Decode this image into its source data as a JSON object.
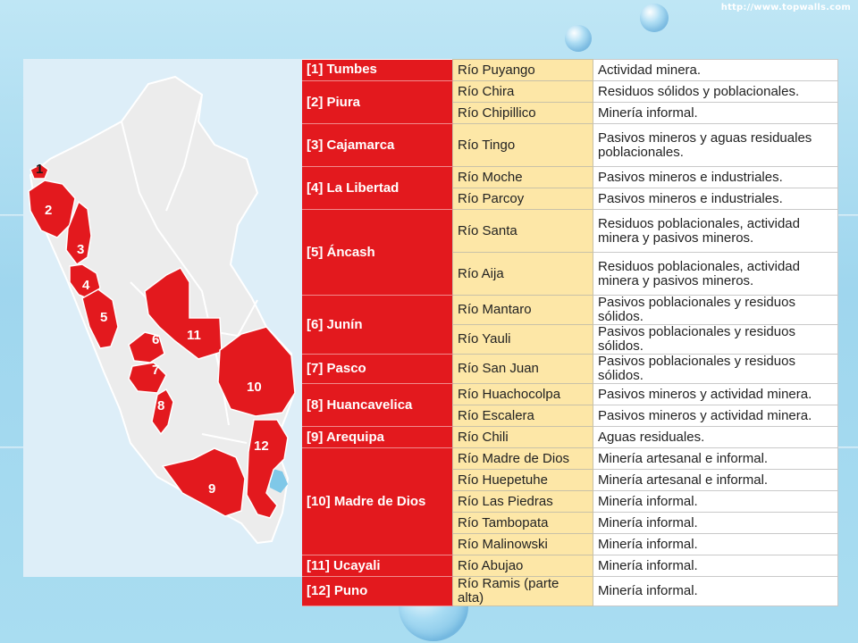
{
  "watermark": "http://www.topwalls.com",
  "map_labels": [
    "1",
    "2",
    "3",
    "4",
    "5",
    "6",
    "7",
    "8",
    "9",
    "10",
    "11",
    "12"
  ],
  "rows": [
    {
      "region": "[1] Tumbes",
      "span": 1,
      "river": "Río Puyango",
      "cause": "Actividad minera.",
      "tall": false
    },
    {
      "region": "[2] Piura",
      "span": 2,
      "river": "Río Chira",
      "cause": "Residuos sólidos y poblacionales.",
      "tall": false
    },
    {
      "region": null,
      "river": "Río Chipillico",
      "cause": "Minería informal.",
      "tall": false
    },
    {
      "region": "[3] Cajamarca",
      "span": 1,
      "river": "Río Tingo",
      "cause": "Pasivos mineros y aguas residuales poblacionales.",
      "tall": true
    },
    {
      "region": "[4] La Libertad",
      "span": 2,
      "river": "Río Moche",
      "cause": "Pasivos mineros e industriales.",
      "tall": false
    },
    {
      "region": null,
      "river": "Río Parcoy",
      "cause": "Pasivos mineros e industriales.",
      "tall": false
    },
    {
      "region": "[5] Áncash",
      "span": 2,
      "river": "Río Santa",
      "cause": "Residuos poblacionales, actividad minera y pasivos mineros.",
      "tall": true
    },
    {
      "region": null,
      "river": "Río Aija",
      "cause": "Residuos poblacionales, actividad minera y pasivos mineros.",
      "tall": true
    },
    {
      "region": "[6] Junín",
      "span": 2,
      "river": "Río Mantaro",
      "cause": "Pasivos poblacionales y residuos sólidos.",
      "tall": false
    },
    {
      "region": null,
      "river": "Río Yauli",
      "cause": "Pasivos poblacionales y residuos sólidos.",
      "tall": false
    },
    {
      "region": "[7] Pasco",
      "span": 1,
      "river": "Río San Juan",
      "cause": "Pasivos poblacionales y residuos sólidos.",
      "tall": false
    },
    {
      "region": "[8] Huancavelica",
      "span": 2,
      "river": "Río Huachocolpa",
      "cause": "Pasivos mineros y actividad minera.",
      "tall": false
    },
    {
      "region": null,
      "river": "Río Escalera",
      "cause": "Pasivos mineros y actividad minera.",
      "tall": false
    },
    {
      "region": "[9] Arequipa",
      "span": 1,
      "river": "Río Chili",
      "cause": "Aguas residuales.",
      "tall": false
    },
    {
      "region": "[10] Madre de Dios",
      "span": 5,
      "river": "Río Madre de Dios",
      "cause": "Minería artesanal e informal.",
      "tall": false
    },
    {
      "region": null,
      "river": "Río Huepetuhe",
      "cause": "Minería artesanal e informal.",
      "tall": false
    },
    {
      "region": null,
      "river": "Río Las Piedras",
      "cause": "Minería informal.",
      "tall": false
    },
    {
      "region": null,
      "river": "Río Tambopata",
      "cause": "Minería informal.",
      "tall": false
    },
    {
      "region": null,
      "river": "Río Malinowski",
      "cause": "Minería informal.",
      "tall": false
    },
    {
      "region": "[11] Ucayali",
      "span": 1,
      "river": "Río Abujao",
      "cause": "Minería informal.",
      "tall": false
    },
    {
      "region": "[12] Puno",
      "span": 1,
      "river": "Río Ramis (parte alta)",
      "cause": "Minería informal.",
      "tall": false
    }
  ],
  "colors": {
    "region_red": "#e3191e",
    "river_yellow": "#fde7a7",
    "map_land": "#ececec",
    "map_sea": "#ddeef8",
    "lake": "#7fc8e8"
  }
}
